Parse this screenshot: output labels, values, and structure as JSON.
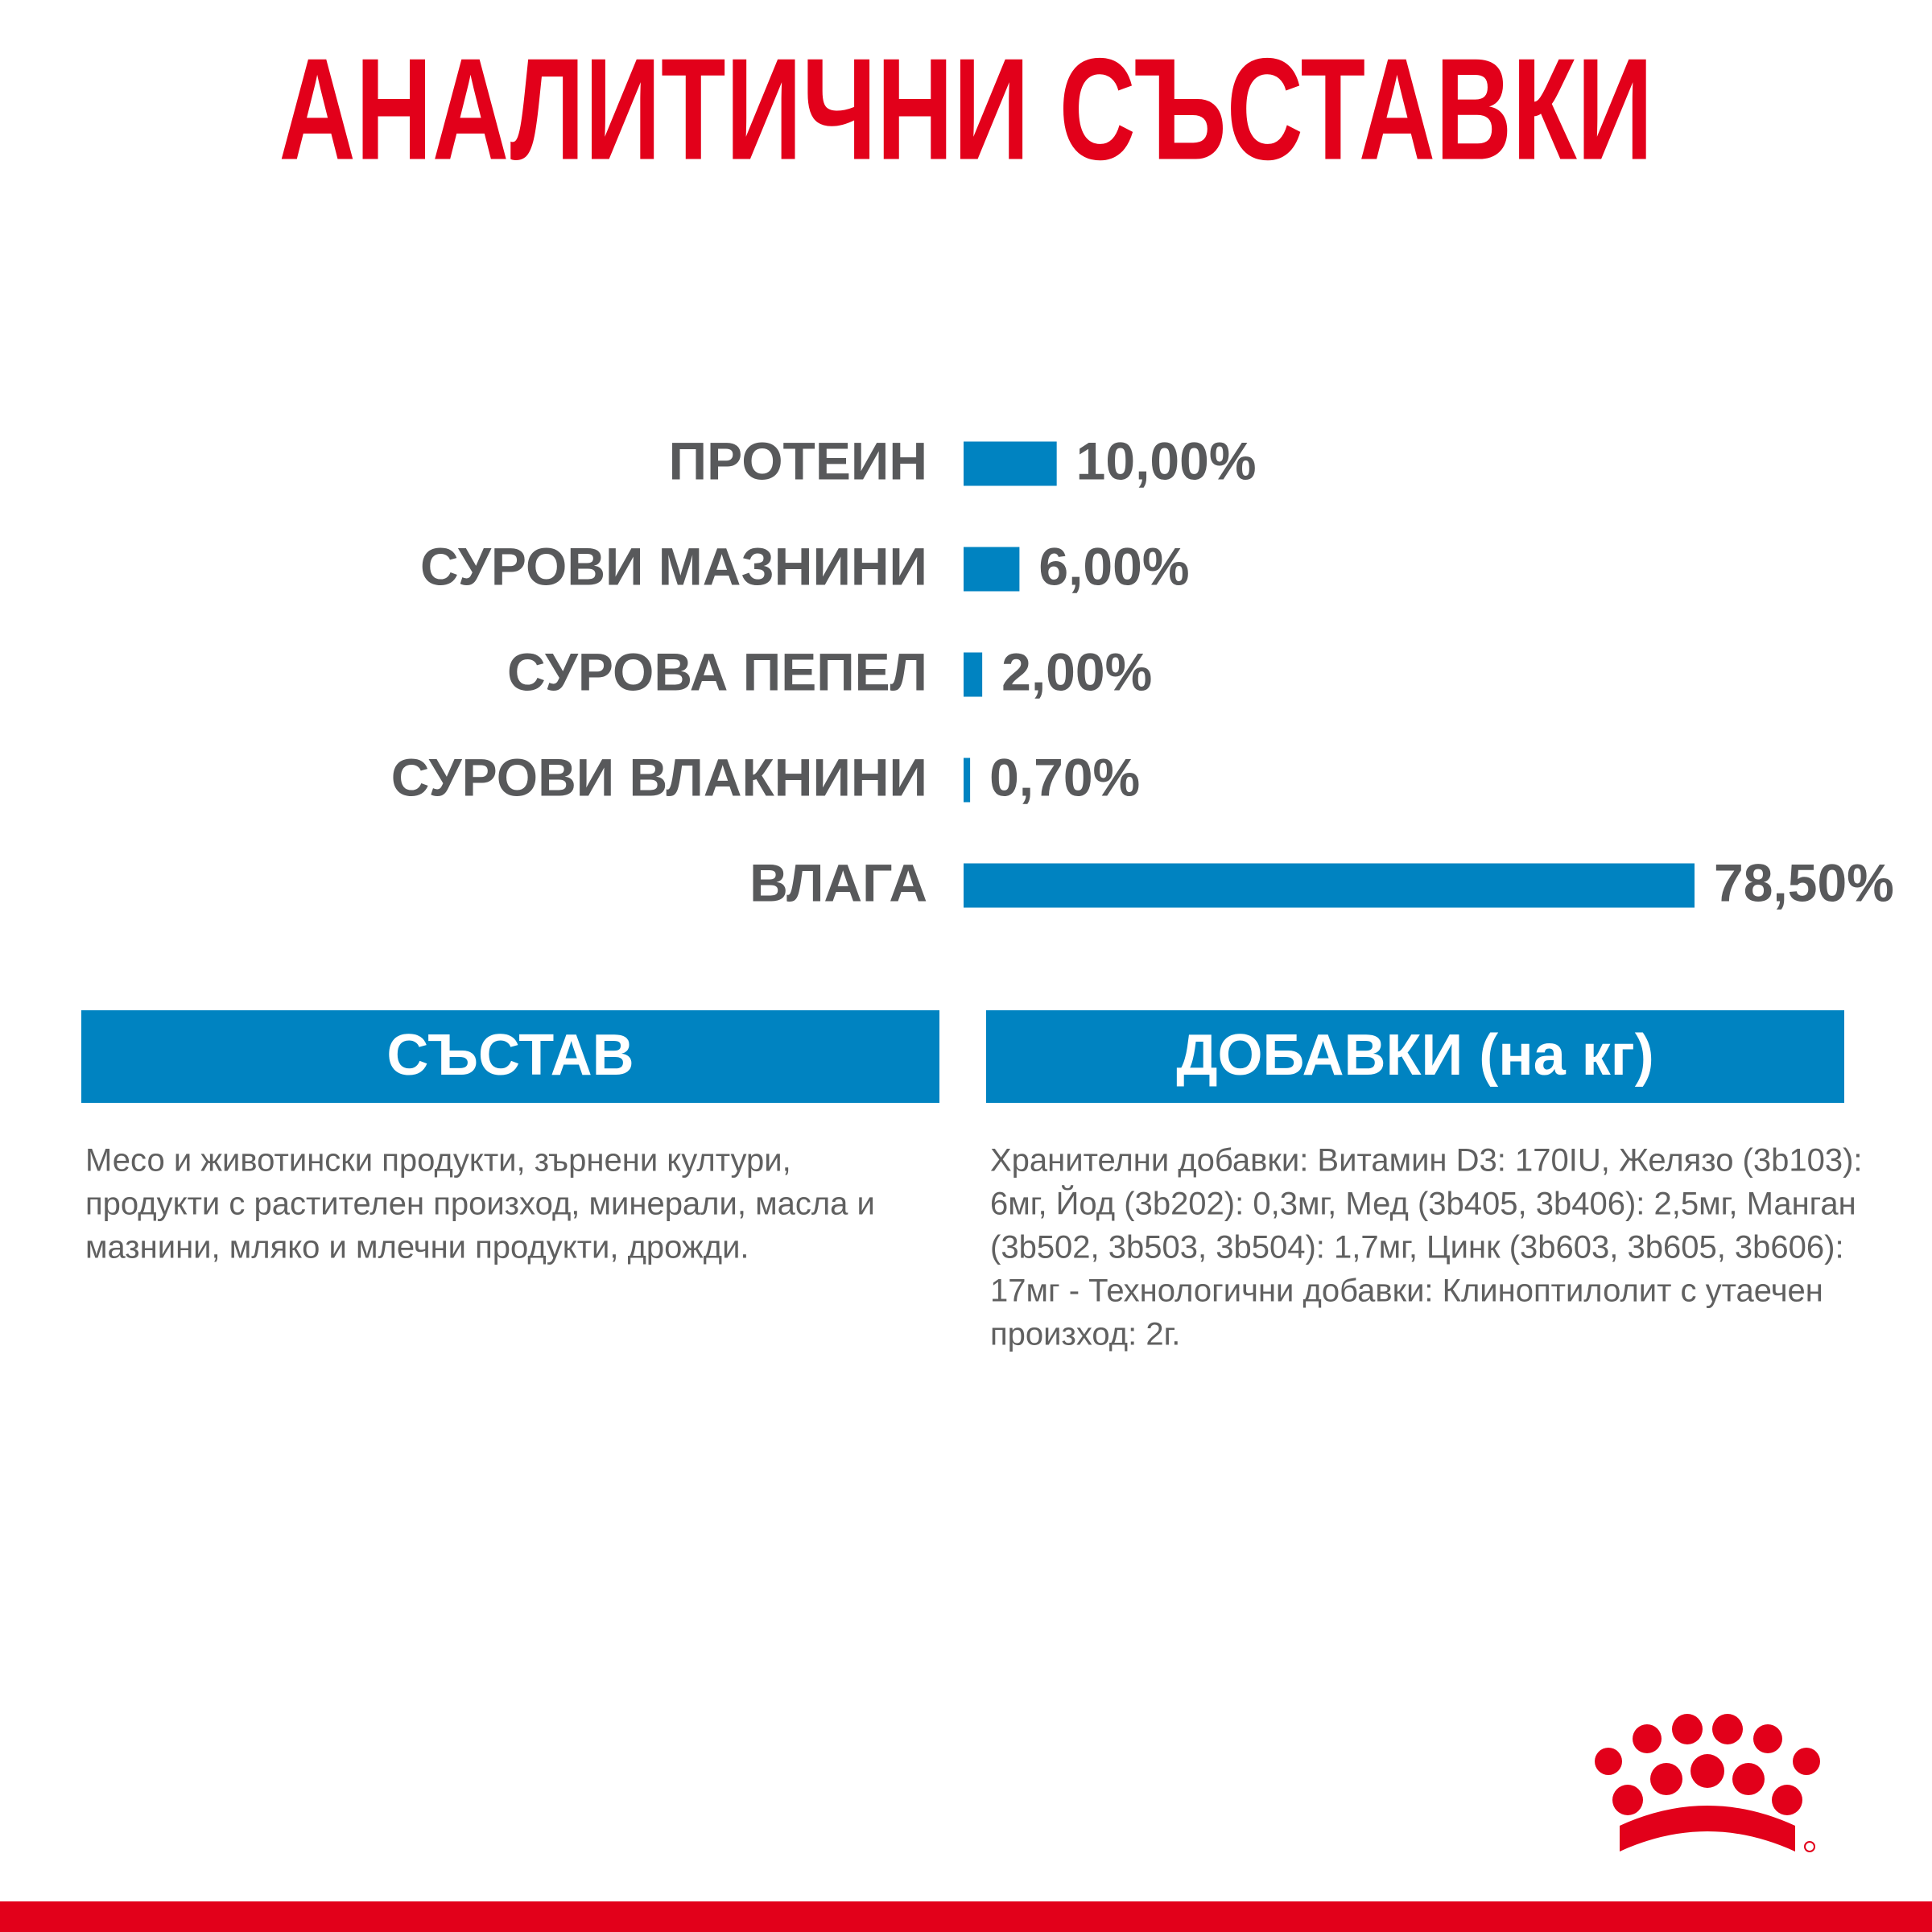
{
  "chart_data": {
    "type": "bar",
    "orientation": "horizontal",
    "title": "АНАЛИТИЧНИ СЪСТАВКИ",
    "categories": [
      "ПРОТЕИН",
      "СУРОВИ МАЗНИНИ",
      "СУРОВА ПЕПЕЛ",
      "СУРОВИ ВЛАКНИНИ",
      "ВЛАГА"
    ],
    "values": [
      10,
      6,
      2,
      0.7,
      78.5
    ],
    "value_labels": [
      "10,00%",
      "6,00%",
      "2,00%",
      "0,70%",
      "78,50%"
    ],
    "color": "#0083c1"
  },
  "sections": [
    {
      "title": "СЪСТАВ",
      "lines": [
        "Месо и животински продукти, зърнени култури,",
        "продукти с растителен произход, минерали, масла и",
        "мазнини, мляко и млечни продукти, дрожди."
      ]
    },
    {
      "title": "ДОБАВКИ (на кг)",
      "lines": [
        "Хранителни добавки: Витамин D3: 170IU, Желязо (3b103):",
        "6мг, Йод (3b202): 0,3мг, Мед (3b405, 3b406): 2,5мг, Манган",
        "(3b502, 3b503, 3b504): 1,7мг, Цинк (3b603, 3b605, 3b606):",
        "17мг - Технологични добавки: Клиноптилолит с утаечен",
        "произход: 2г."
      ]
    }
  ]
}
